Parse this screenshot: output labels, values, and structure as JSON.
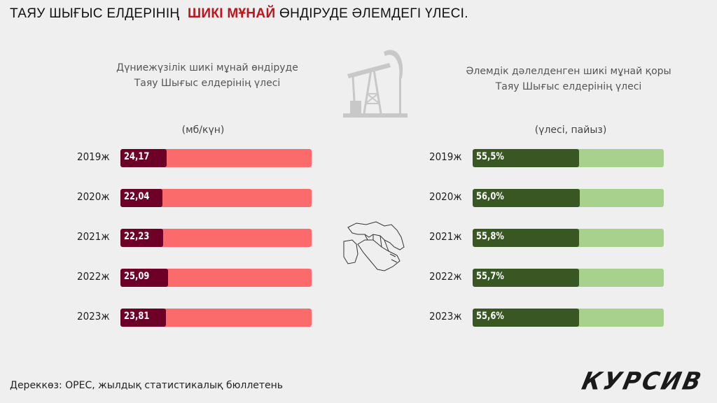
{
  "headline": {
    "before": "ТАЯУ ШЫҒЫС ЕЛДЕРІНІҢ",
    "highlight": "ШИКІ МҰНАЙ",
    "after": "ӨНДІРУДЕ ӘЛЕМДЕГІ ҮЛЕСІ."
  },
  "colors": {
    "left_track": "#fb6b6b",
    "left_fill": "#6e0027",
    "right_track": "#a9d18e",
    "right_fill": "#385723",
    "highlight": "#c0141b"
  },
  "chart_data": [
    {
      "type": "bar",
      "orientation": "horizontal",
      "subtitle_line1": "Дүниежүзілік шикі мұнай өндіруде",
      "subtitle_line2": "Таяу Шығыс елдерінің үлесі",
      "unit": "(мб/күн)",
      "categories": [
        "2019ж",
        "2020ж",
        "2021ж",
        "2022ж",
        "2023ж"
      ],
      "values": [
        24.17,
        22.04,
        22.23,
        25.09,
        23.81
      ],
      "labels": [
        "24,17",
        "22,04",
        "22,23",
        "25,09",
        "23,81"
      ]
    },
    {
      "type": "bar",
      "orientation": "horizontal",
      "subtitle_line1": "Әлемдік дәлелденген шикі мұнай қоры",
      "subtitle_line2": "Таяу Шығыс елдерінің үлесі",
      "unit": "(үлесі, пайыз)",
      "categories": [
        "2019ж",
        "2020ж",
        "2021ж",
        "2022ж",
        "2023ж"
      ],
      "values": [
        55.5,
        56.0,
        55.8,
        55.7,
        55.6
      ],
      "labels": [
        "55,5%",
        "56,0%",
        "55,8%",
        "55,7%",
        "55,6%"
      ]
    }
  ],
  "source": "Дереккөз: OPEC, жылдық статистикалық бюллетень",
  "logo": "КУРСИВ",
  "icons": [
    "oil-pump-icon",
    "middle-east-map-icon"
  ]
}
